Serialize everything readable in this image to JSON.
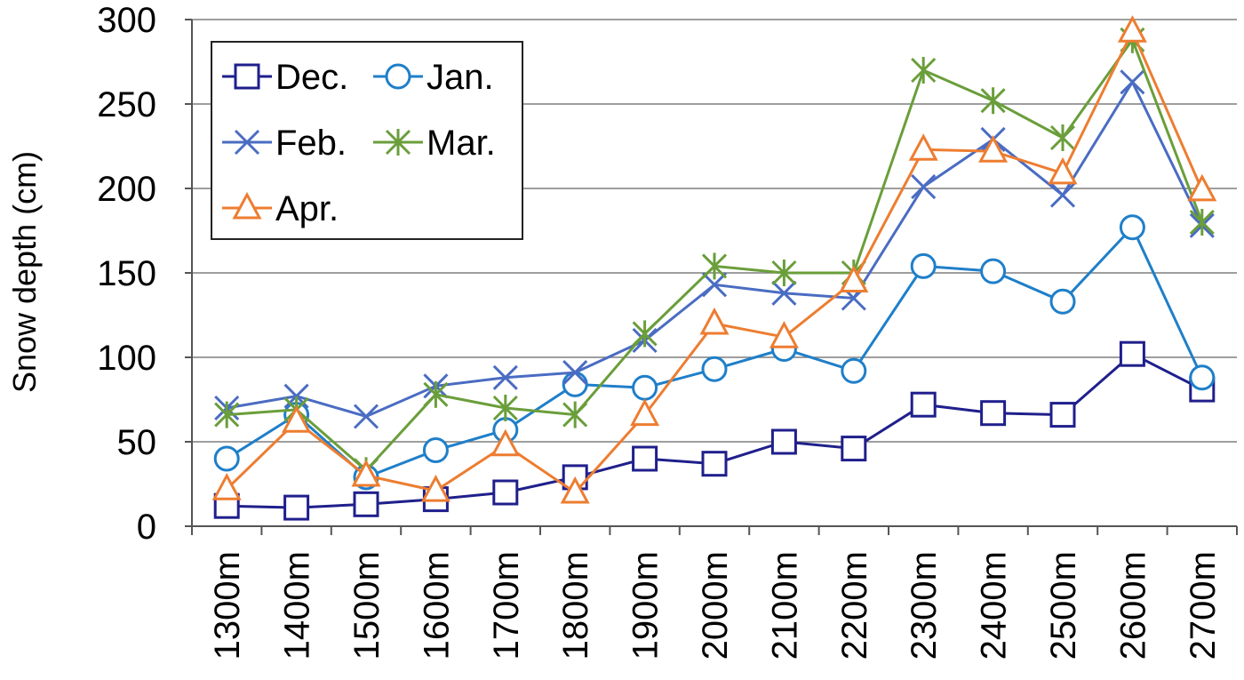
{
  "chart_data": {
    "type": "line",
    "title": "",
    "xlabel": "",
    "ylabel": "Snow depth (cm)",
    "ylim": [
      0,
      300
    ],
    "yticks": [
      0,
      50,
      100,
      150,
      200,
      250,
      300
    ],
    "grid": "horizontal",
    "legend_position": "top-left",
    "categories": [
      "1300m",
      "1400m",
      "1500m",
      "1600m",
      "1700m",
      "1800m",
      "1900m",
      "2000m",
      "2100m",
      "2200m",
      "2300m",
      "2400m",
      "2500m",
      "2600m",
      "2700m"
    ],
    "series": [
      {
        "name": "Dec.",
        "color": "#1f1f8c",
        "marker": "square",
        "values": [
          12,
          11,
          13,
          16,
          20,
          29,
          40,
          37,
          50,
          46,
          72,
          67,
          66,
          102,
          81
        ]
      },
      {
        "name": "Jan.",
        "color": "#1f7fc9",
        "marker": "circle",
        "values": [
          40,
          66,
          29,
          45,
          57,
          84,
          82,
          93,
          105,
          92,
          154,
          151,
          133,
          177,
          88
        ]
      },
      {
        "name": "Feb.",
        "color": "#4a6cc2",
        "marker": "x",
        "values": [
          70,
          77,
          65,
          83,
          88,
          91,
          110,
          143,
          138,
          135,
          201,
          229,
          196,
          263,
          178
        ]
      },
      {
        "name": "Mar.",
        "color": "#6a9e3a",
        "marker": "asterisk",
        "values": [
          66,
          69,
          33,
          78,
          70,
          66,
          114,
          154,
          150,
          150,
          270,
          252,
          230,
          288,
          180
        ]
      },
      {
        "name": "Apr.",
        "color": "#ed7d31",
        "marker": "triangle",
        "values": [
          22,
          62,
          30,
          21,
          48,
          20,
          66,
          120,
          112,
          145,
          223,
          222,
          209,
          293,
          199
        ]
      }
    ]
  }
}
